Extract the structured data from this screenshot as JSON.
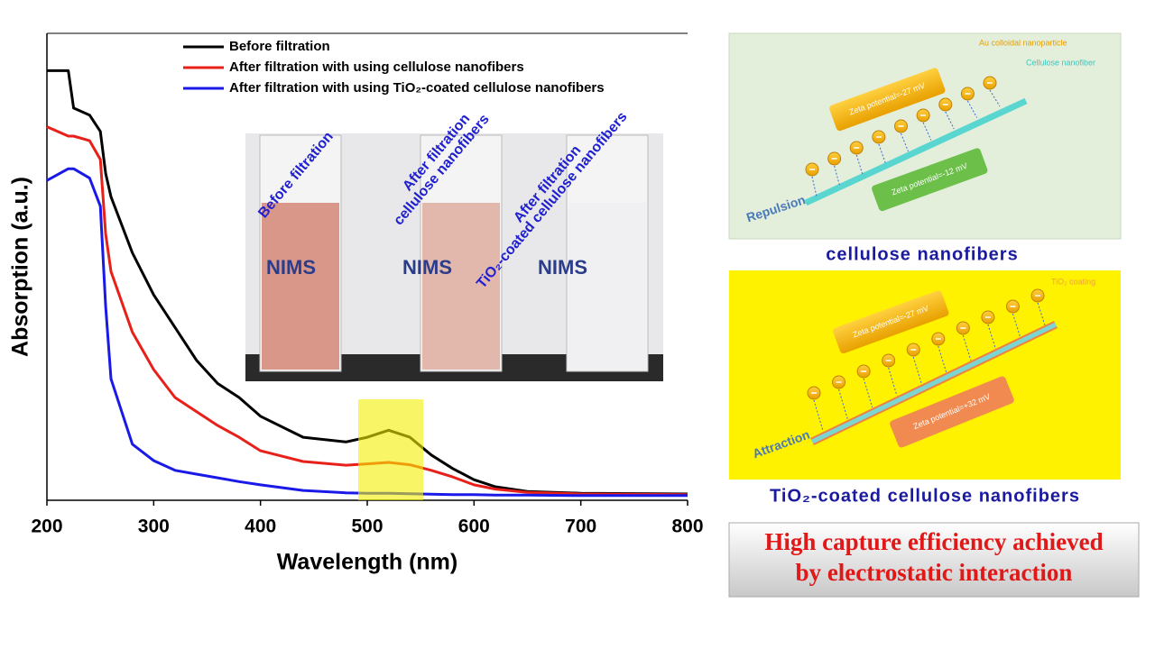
{
  "chart_data": {
    "type": "line",
    "xlabel": "Wavelength (nm)",
    "ylabel": "Absorption (a.u.)",
    "x": [
      200,
      220,
      225,
      240,
      250,
      255,
      260,
      280,
      300,
      320,
      340,
      360,
      380,
      400,
      440,
      480,
      500,
      520,
      540,
      560,
      580,
      600,
      620,
      650,
      700,
      800
    ],
    "series": [
      {
        "name": "Before filtration",
        "color": "#000000",
        "values": [
          0.92,
          0.92,
          0.84,
          0.825,
          0.79,
          0.7,
          0.65,
          0.53,
          0.44,
          0.37,
          0.3,
          0.25,
          0.22,
          0.18,
          0.135,
          0.125,
          0.135,
          0.15,
          0.135,
          0.097,
          0.068,
          0.044,
          0.029,
          0.019,
          0.015,
          0.0135
        ]
      },
      {
        "name": "After filtration with using cellulose nanofibers",
        "color": "#e8201a",
        "values": [
          0.8,
          0.78,
          0.78,
          0.77,
          0.73,
          0.57,
          0.49,
          0.36,
          0.28,
          0.22,
          0.19,
          0.16,
          0.135,
          0.106,
          0.083,
          0.075,
          0.078,
          0.081,
          0.076,
          0.064,
          0.05,
          0.033,
          0.024,
          0.017,
          0.0135,
          0.012
        ]
      },
      {
        "name": "After filtration with using TiO₂-coated cellulose nanofibers",
        "color": "#1a1ae8",
        "values": [
          0.685,
          0.71,
          0.71,
          0.69,
          0.63,
          0.415,
          0.26,
          0.12,
          0.085,
          0.064,
          0.056,
          0.048,
          0.04,
          0.033,
          0.021,
          0.016,
          0.015,
          0.015,
          0.014,
          0.013,
          0.012,
          0.012,
          0.011,
          0.011,
          0.01,
          0.01
        ]
      }
    ],
    "xlim": [
      200,
      800
    ],
    "xticks": [
      200,
      300,
      400,
      500,
      600,
      700,
      800
    ],
    "ylim": [
      0,
      1
    ],
    "legend": "upper-left"
  },
  "photo": {
    "labels": [
      "Before filtration",
      "After filtration",
      "cellulose nanofibers",
      "After filtration",
      "TiO₂-coated cellulose nanofibers"
    ],
    "watermark": "NIMS"
  },
  "diagrams": [
    {
      "particle": "Au colloidal nanoparticle",
      "fiber": "Cellulose nanofiber",
      "zeta_particle": "Zeta potential=-27 mV",
      "zeta_fiber": "Zeta potential=-12 mV",
      "interaction": "Repulsion",
      "caption": "cellulose nanofibers"
    },
    {
      "fiber": "TiO₂ coating",
      "zeta_particle": "Zeta potential=-27 mV",
      "zeta_fiber": "Zeta potential=+32 mV",
      "interaction": "Attraction",
      "caption": "TiO₂-coated cellulose nanofibers"
    }
  ],
  "conclusion": [
    "High capture efficiency achieved",
    "by electrostatic interaction"
  ]
}
